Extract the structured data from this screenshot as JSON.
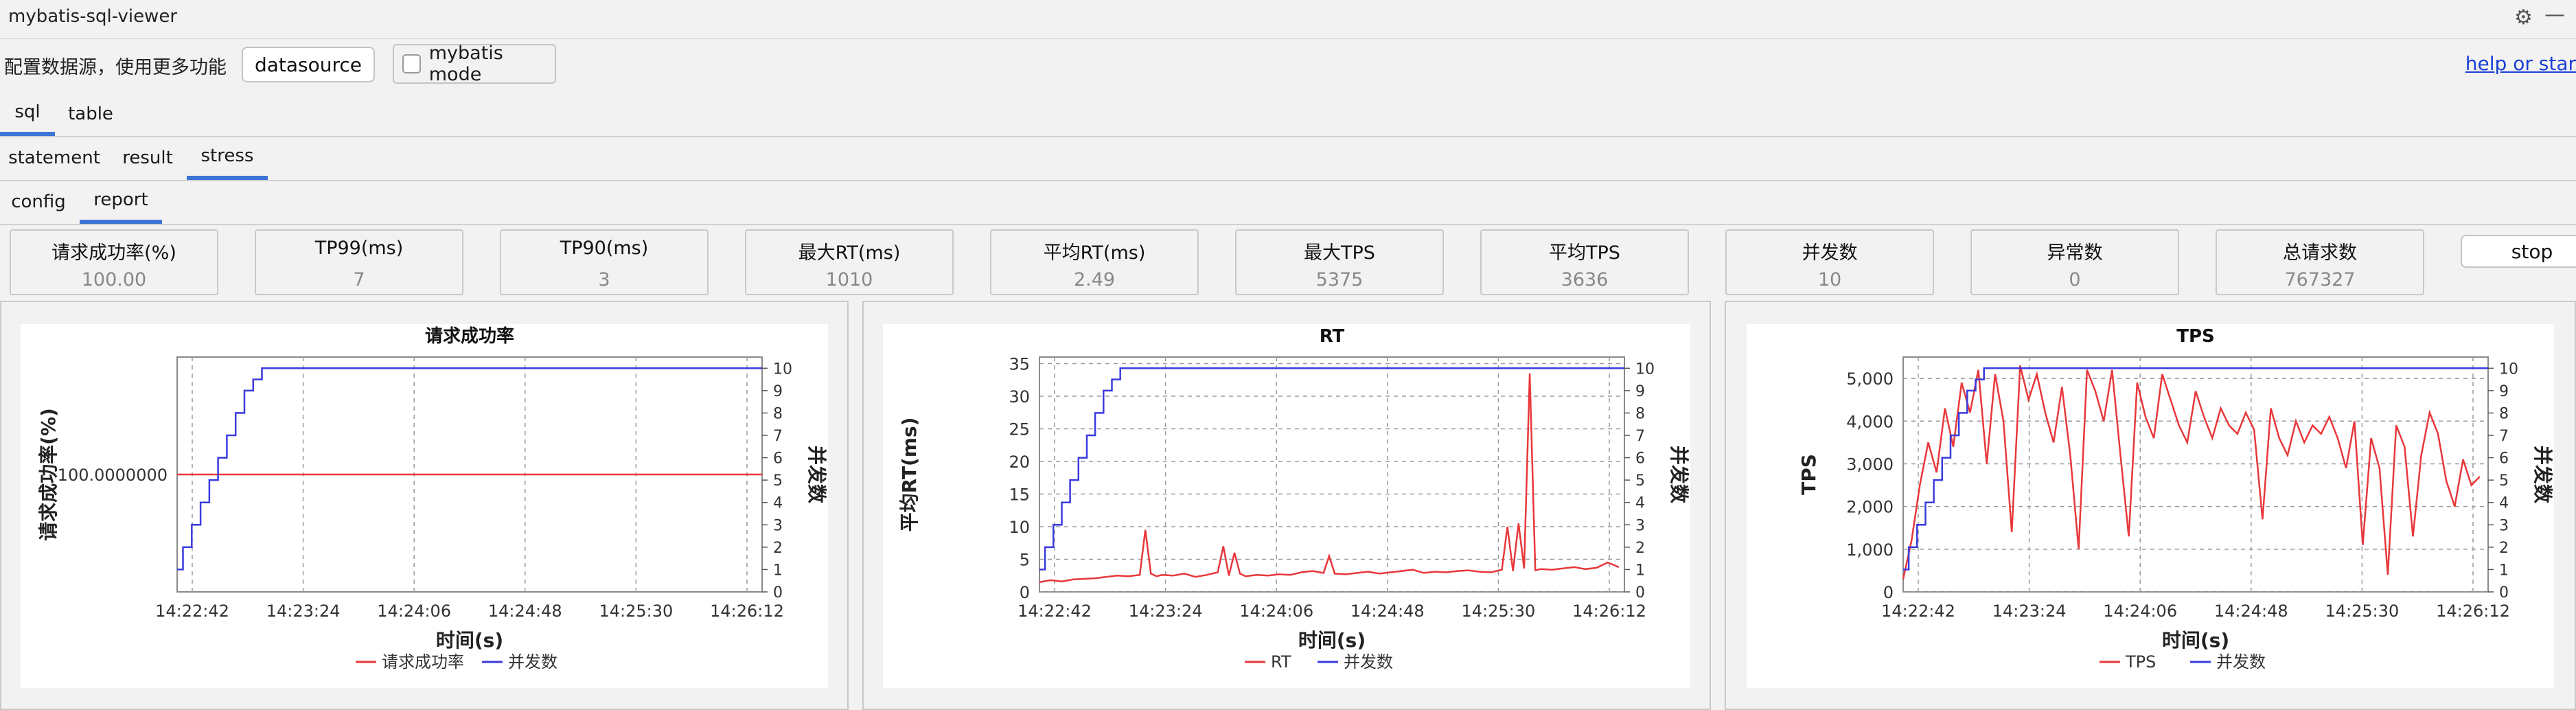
{
  "window": {
    "title": "mybatis-sql-viewer"
  },
  "icons": {
    "settings": "gear-icon",
    "minimize": "minimize-icon"
  },
  "toolbar": {
    "hint": "配置数据源，使用更多功能",
    "datasource_label": "datasource",
    "mybatis_mode_label": "mybatis mode",
    "mybatis_mode_checked": false,
    "help_link": "help or star"
  },
  "tabs_main": [
    {
      "label": "sql",
      "active": true
    },
    {
      "label": "table",
      "active": false
    }
  ],
  "tabs_sql": [
    {
      "label": "statement",
      "active": false
    },
    {
      "label": "result",
      "active": false
    },
    {
      "label": "stress",
      "active": true
    }
  ],
  "tabs_stress": [
    {
      "label": "config",
      "active": false
    },
    {
      "label": "report",
      "active": true
    }
  ],
  "metrics": [
    {
      "label": "请求成功率(%)",
      "value": "100.00"
    },
    {
      "label": "TP99(ms)",
      "value": "7"
    },
    {
      "label": "TP90(ms)",
      "value": "3"
    },
    {
      "label": "最大RT(ms)",
      "value": "1010"
    },
    {
      "label": "平均RT(ms)",
      "value": "2.49"
    },
    {
      "label": "最大TPS",
      "value": "5375"
    },
    {
      "label": "平均TPS",
      "value": "3636"
    },
    {
      "label": "并发数",
      "value": "10"
    },
    {
      "label": "异常数",
      "value": "0"
    },
    {
      "label": "总请求数",
      "value": "767327"
    }
  ],
  "stop_label": "stop",
  "colors": {
    "red_series": "#e8383b",
    "blue_series": "#3a3adf",
    "tab_accent": "#3d74d6"
  },
  "chart_data": [
    {
      "type": "line",
      "title": "请求成功率",
      "xlabel": "时间(s)",
      "ylabel": "请求成功率(%)",
      "y2label": "并发数",
      "x_tick_labels": [
        "14:22:42",
        "14:23:24",
        "14:24:06",
        "14:24:48",
        "14:25:30",
        "14:26:12"
      ],
      "y_tick_labels": [
        "100.0000000"
      ],
      "y2_tick_labels": [
        "0",
        "1",
        "2",
        "3",
        "4",
        "5",
        "6",
        "7",
        "8",
        "9",
        "10"
      ],
      "ylim": [
        99.9999,
        100.0001
      ],
      "y2lim": [
        0,
        10.5
      ],
      "xlim": [
        0,
        200
      ],
      "series": [
        {
          "name": "请求成功率",
          "axis": "left",
          "x": [
            0,
            200
          ],
          "y": [
            100,
            100
          ]
        },
        {
          "name": "并发数",
          "axis": "right",
          "x": [
            0,
            2,
            2,
            5,
            5,
            8,
            8,
            11,
            11,
            14,
            14,
            17,
            17,
            20,
            20,
            23,
            23,
            26,
            26,
            29,
            29,
            32,
            32,
            200
          ],
          "y": [
            1,
            1,
            2,
            2,
            3,
            3,
            4,
            4,
            5,
            5,
            6,
            6,
            7,
            7,
            8,
            8,
            9,
            9,
            9.5,
            9.5,
            10,
            10,
            10,
            10
          ]
        }
      ],
      "legend": "bottom",
      "grid": true
    },
    {
      "type": "line",
      "title": "RT",
      "xlabel": "时间(s)",
      "ylabel": "平均RT(ms)",
      "y2label": "并发数",
      "x_tick_labels": [
        "14:22:42",
        "14:23:24",
        "14:24:06",
        "14:24:48",
        "14:25:30",
        "14:26:12"
      ],
      "y_tick_labels": [
        "0",
        "5",
        "10",
        "15",
        "20",
        "25",
        "30",
        "35"
      ],
      "y2_tick_labels": [
        "0",
        "1",
        "2",
        "3",
        "4",
        "5",
        "6",
        "7",
        "8",
        "9",
        "10"
      ],
      "ylim": [
        0,
        36
      ],
      "y2lim": [
        0,
        10.5
      ],
      "xlim": [
        0,
        210
      ],
      "series": [
        {
          "name": "RT",
          "axis": "left",
          "x": [
            0,
            4,
            8,
            12,
            16,
            20,
            24,
            28,
            32,
            36,
            38,
            40,
            42,
            44,
            48,
            52,
            56,
            60,
            64,
            66,
            68,
            70,
            72,
            74,
            78,
            82,
            86,
            90,
            94,
            98,
            102,
            104,
            106,
            110,
            114,
            118,
            122,
            126,
            130,
            134,
            138,
            142,
            146,
            150,
            154,
            158,
            162,
            166,
            168,
            170,
            172,
            174,
            176,
            178,
            180,
            184,
            188,
            192,
            196,
            200,
            204,
            208
          ],
          "y": [
            1.5,
            1.8,
            1.6,
            1.9,
            2,
            2.1,
            2.3,
            2.5,
            2.4,
            2.6,
            9.5,
            2.8,
            2.4,
            2.6,
            2.5,
            2.8,
            2.3,
            2.6,
            3,
            7,
            2.5,
            6,
            2.8,
            2.4,
            2.6,
            2.5,
            2.7,
            2.6,
            3,
            3.2,
            2.9,
            5.5,
            2.8,
            2.7,
            2.9,
            3.1,
            2.8,
            3,
            3.2,
            3.4,
            2.9,
            3.1,
            3,
            3.2,
            3.3,
            3.1,
            3,
            3.4,
            10,
            3.2,
            10.5,
            3.6,
            33.5,
            3.3,
            3.5,
            3.4,
            3.6,
            3.8,
            3.5,
            3.7,
            4.5,
            3.8
          ]
        },
        {
          "name": "并发数",
          "axis": "right",
          "x": [
            0,
            2,
            2,
            5,
            5,
            8,
            8,
            11,
            11,
            14,
            14,
            17,
            17,
            20,
            20,
            23,
            23,
            26,
            26,
            29,
            29,
            32,
            32,
            210
          ],
          "y": [
            1,
            1,
            2,
            2,
            3,
            3,
            4,
            4,
            5,
            5,
            6,
            6,
            7,
            7,
            8,
            8,
            9,
            9,
            9.5,
            9.5,
            10,
            10,
            10,
            10
          ]
        }
      ],
      "legend": "bottom",
      "grid": true
    },
    {
      "type": "line",
      "title": "TPS",
      "xlabel": "时间(s)",
      "ylabel": "TPS",
      "y2label": "并发数",
      "x_tick_labels": [
        "14:22:42",
        "14:23:24",
        "14:24:06",
        "14:24:48",
        "14:25:30",
        "14:26:12"
      ],
      "y_tick_labels": [
        "0",
        "1,000",
        "2,000",
        "3,000",
        "4,000",
        "5,000"
      ],
      "y2_tick_labels": [
        "0",
        "1",
        "2",
        "3",
        "4",
        "5",
        "6",
        "7",
        "8",
        "9",
        "10"
      ],
      "ylim": [
        0,
        5500
      ],
      "y2lim": [
        0,
        10.5
      ],
      "xlim": [
        0,
        210
      ],
      "series": [
        {
          "name": "TPS",
          "axis": "right_primary",
          "x": [
            0,
            3,
            6,
            9,
            12,
            15,
            18,
            21,
            24,
            27,
            30,
            33,
            36,
            39,
            42,
            45,
            48,
            51,
            54,
            57,
            60,
            63,
            66,
            69,
            72,
            75,
            78,
            81,
            84,
            87,
            90,
            93,
            96,
            99,
            102,
            105,
            108,
            111,
            114,
            117,
            120,
            123,
            126,
            129,
            132,
            135,
            138,
            141,
            144,
            147,
            150,
            153,
            156,
            159,
            162,
            165,
            168,
            171,
            174,
            177,
            180,
            183,
            186,
            189,
            192,
            195,
            198,
            201,
            204,
            207
          ],
          "y": [
            300,
            1200,
            2500,
            3500,
            2800,
            4300,
            3400,
            4900,
            4200,
            5200,
            3000,
            5100,
            4000,
            1400,
            5300,
            4500,
            5100,
            4200,
            3500,
            4800,
            3200,
            1000,
            5200,
            4700,
            4000,
            5200,
            3200,
            1300,
            4900,
            4100,
            3600,
            5100,
            4500,
            3900,
            3500,
            4700,
            4100,
            3600,
            4300,
            3900,
            3700,
            4200,
            3800,
            1700,
            4300,
            3600,
            3200,
            4000,
            3500,
            3900,
            3700,
            4100,
            3600,
            2900,
            4000,
            1100,
            3600,
            2900,
            400,
            3900,
            3400,
            1300,
            3200,
            4200,
            3700,
            2600,
            2000,
            3100,
            2500,
            2700
          ]
        },
        {
          "name": "并发数",
          "axis": "right",
          "x": [
            0,
            2,
            2,
            5,
            5,
            8,
            8,
            11,
            11,
            14,
            14,
            17,
            17,
            20,
            20,
            23,
            23,
            26,
            26,
            29,
            29,
            32,
            32,
            210
          ],
          "y": [
            1,
            1,
            2,
            2,
            3,
            3,
            4,
            4,
            5,
            5,
            6,
            6,
            7,
            7,
            8,
            8,
            9,
            9,
            9.5,
            9.5,
            10,
            10,
            10,
            10
          ]
        }
      ],
      "legend": "bottom",
      "grid": true
    }
  ]
}
